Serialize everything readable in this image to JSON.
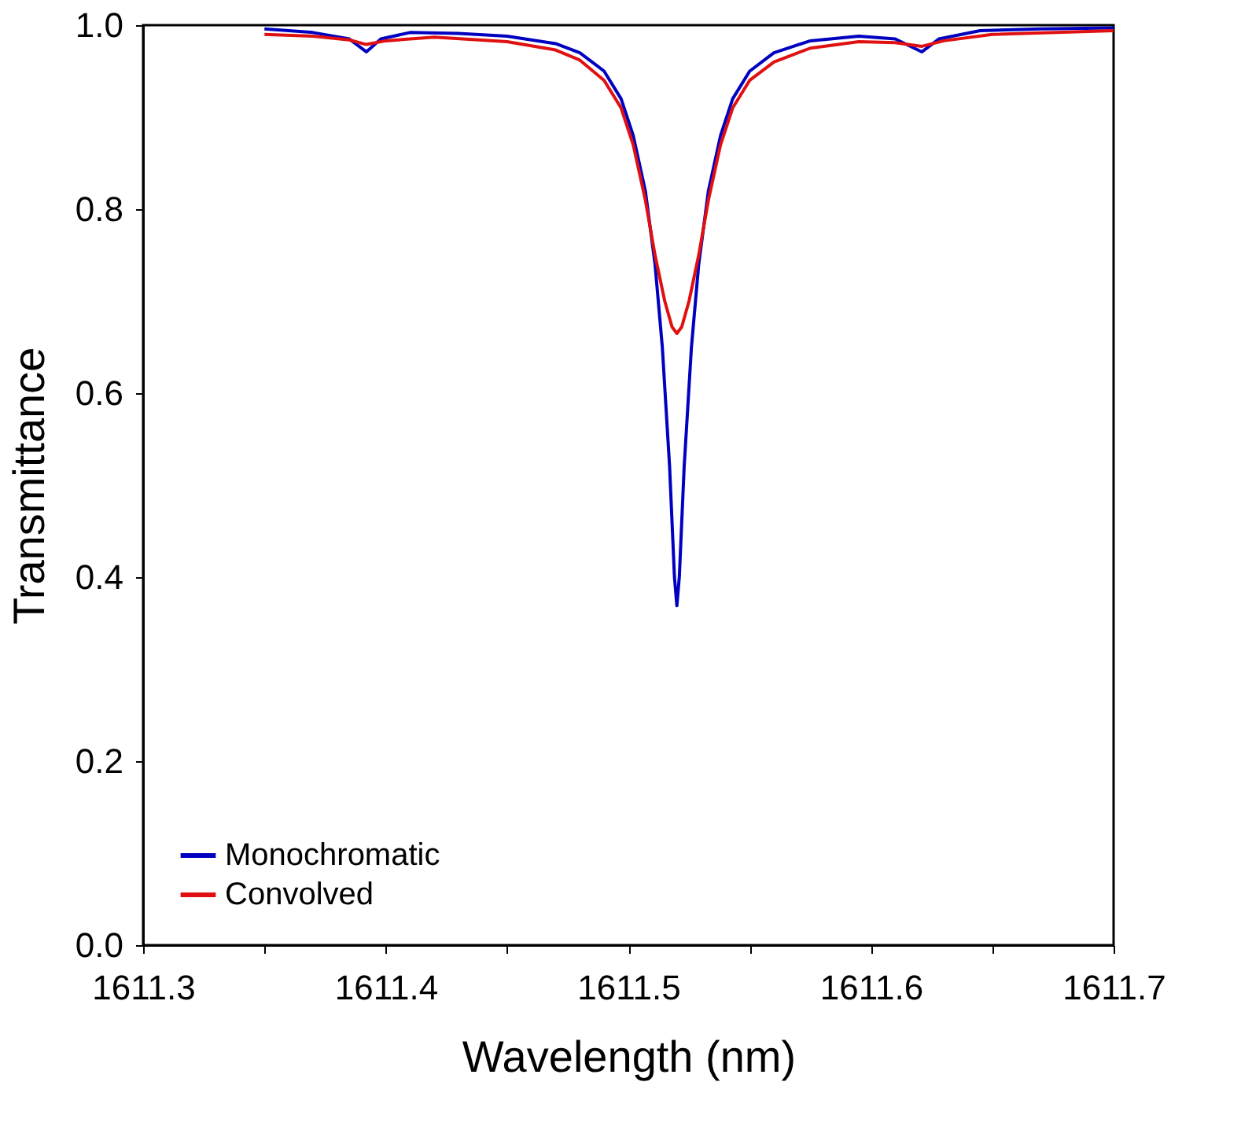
{
  "chart_data": {
    "type": "line",
    "xlabel": "Wavelength (nm)",
    "ylabel": "Transmittance",
    "xlim": [
      1611.3,
      1611.7
    ],
    "ylim": [
      0,
      1
    ],
    "xticks": [
      1611.3,
      {
        "value": 1611.35,
        "label": null
      },
      1611.4,
      {
        "value": 1611.45,
        "label": null
      },
      1611.5,
      {
        "value": 1611.55,
        "label": null
      },
      1611.6,
      {
        "value": 1611.65,
        "label": null
      },
      1611.7
    ],
    "yticks": [
      {
        "value": 0,
        "label": "0.0"
      },
      0.2,
      0.4,
      0.6,
      0.8,
      {
        "value": 1,
        "label": "1.0"
      }
    ],
    "grid": false,
    "legend": "bottom left",
    "line_style": "solid",
    "marker": "none",
    "series": [
      {
        "name": "Monochromatic",
        "color": "#0000c0",
        "x": [
          1611.35,
          1611.37,
          1611.385,
          1611.392,
          1611.398,
          1611.41,
          1611.43,
          1611.45,
          1611.47,
          1611.48,
          1611.49,
          1611.497,
          1611.502,
          1611.507,
          1611.511,
          1611.514,
          1611.517,
          1611.519,
          1611.52,
          1611.521,
          1611.523,
          1611.526,
          1611.529,
          1611.533,
          1611.538,
          1611.543,
          1611.55,
          1611.56,
          1611.575,
          1611.595,
          1611.61,
          1611.621,
          1611.628,
          1611.645,
          1611.67,
          1611.7
        ],
        "values": [
          0.996,
          0.992,
          0.985,
          0.971,
          0.985,
          0.992,
          0.991,
          0.988,
          0.98,
          0.97,
          0.95,
          0.92,
          0.88,
          0.82,
          0.74,
          0.65,
          0.52,
          0.4,
          0.369,
          0.4,
          0.52,
          0.65,
          0.74,
          0.82,
          0.88,
          0.92,
          0.95,
          0.97,
          0.983,
          0.988,
          0.985,
          0.971,
          0.985,
          0.994,
          0.996,
          0.997
        ]
      },
      {
        "name": "Convolved",
        "color": "#e01010",
        "x": [
          1611.35,
          1611.37,
          1611.385,
          1611.392,
          1611.4,
          1611.42,
          1611.45,
          1611.47,
          1611.48,
          1611.49,
          1611.497,
          1611.502,
          1611.507,
          1611.511,
          1611.515,
          1611.518,
          1611.52,
          1611.522,
          1611.525,
          1611.529,
          1611.533,
          1611.538,
          1611.543,
          1611.55,
          1611.56,
          1611.575,
          1611.595,
          1611.61,
          1611.621,
          1611.63,
          1611.65,
          1611.7
        ],
        "values": [
          0.99,
          0.988,
          0.984,
          0.979,
          0.983,
          0.987,
          0.982,
          0.973,
          0.962,
          0.94,
          0.91,
          0.87,
          0.81,
          0.75,
          0.7,
          0.672,
          0.665,
          0.672,
          0.7,
          0.75,
          0.81,
          0.87,
          0.91,
          0.94,
          0.96,
          0.975,
          0.982,
          0.981,
          0.977,
          0.983,
          0.99,
          0.994
        ]
      }
    ]
  }
}
